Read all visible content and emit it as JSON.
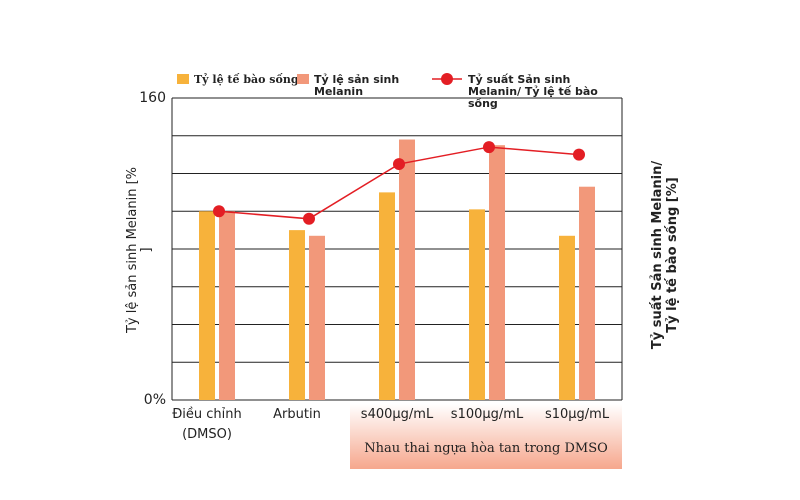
{
  "chart_data": {
    "type": "bar",
    "categories": [
      "Điều chỉnh\n(DMSO)",
      "Arbutin",
      "s400μg/mL",
      "s100μg/mL",
      "s10μg/mL"
    ],
    "group_label": "Nhau thai ngựa hòa tan trong DMSO",
    "y_label": "Tỷ lệ sản sinh Melanin  [%\n]",
    "y2_label": "Tỷ suất Sản sinh Melanin/\nTỷ lệ tế bào sống  [%]",
    "series": [
      {
        "name": "Tỷ lệ tế bào sống",
        "color": "#f7b23b",
        "kind": "bar",
        "values": [
          100,
          90,
          110,
          101,
          87
        ]
      },
      {
        "name": "Tỷ lệ sản sinh\nMelanin",
        "color": "#f2987a",
        "kind": "bar",
        "values": [
          100,
          87,
          138,
          135,
          113
        ]
      },
      {
        "name": "Tỷ suất Sản sinh\nMelanin/ Tỷ lệ tế bào\nsống",
        "color": "#e31e24",
        "kind": "line",
        "values": [
          100,
          96,
          125,
          134,
          130
        ]
      }
    ],
    "ylim": [
      0,
      160
    ],
    "yticks": [
      {
        "value": 0,
        "label": "0%"
      },
      160
    ],
    "ygrid": [
      20,
      40,
      60,
      80,
      100,
      120,
      140
    ],
    "grid": true
  }
}
